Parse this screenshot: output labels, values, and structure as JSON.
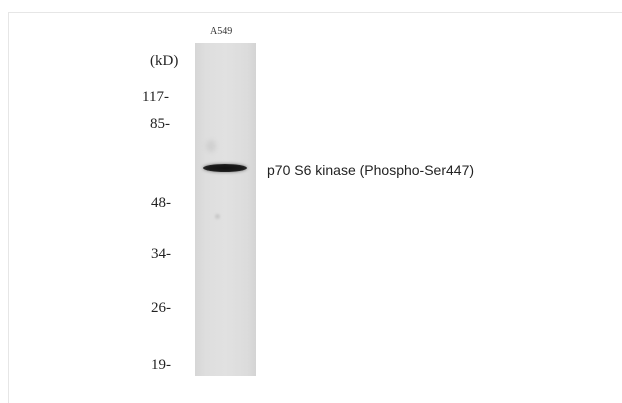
{
  "blot": {
    "lane_label": "A549",
    "unit_label": "(kD)",
    "markers": [
      "117-",
      "85-",
      "48-",
      "34-",
      "26-",
      "19-"
    ],
    "band_label": "p70 S6 kinase (Phospho-Ser447)"
  }
}
